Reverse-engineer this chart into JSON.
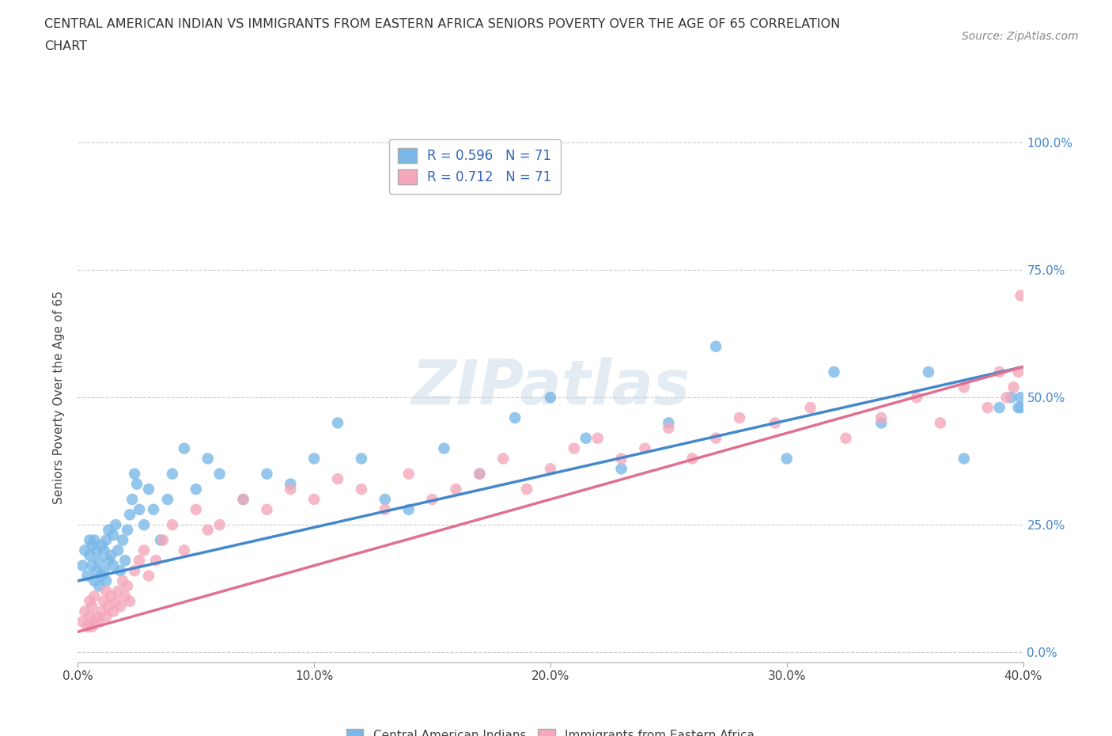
{
  "title_line1": "CENTRAL AMERICAN INDIAN VS IMMIGRANTS FROM EASTERN AFRICA SENIORS POVERTY OVER THE AGE OF 65 CORRELATION",
  "title_line2": "CHART",
  "source_text": "Source: ZipAtlas.com",
  "ylabel_label": "Seniors Poverty Over the Age of 65",
  "xlim": [
    0.0,
    0.4
  ],
  "ylim": [
    -0.02,
    1.02
  ],
  "blue_R": 0.596,
  "blue_N": 71,
  "pink_R": 0.712,
  "pink_N": 71,
  "blue_color": "#7BB8E8",
  "pink_color": "#F4A8BA",
  "blue_line_color": "#4488CC",
  "pink_line_color": "#E07090",
  "legend_label_blue": "Central American Indians",
  "legend_label_pink": "Immigrants from Eastern Africa",
  "watermark": "ZIPatlas",
  "blue_x": [
    0.002,
    0.003,
    0.004,
    0.005,
    0.005,
    0.006,
    0.006,
    0.007,
    0.007,
    0.008,
    0.008,
    0.009,
    0.009,
    0.01,
    0.01,
    0.011,
    0.011,
    0.012,
    0.012,
    0.013,
    0.013,
    0.014,
    0.015,
    0.015,
    0.016,
    0.017,
    0.018,
    0.019,
    0.02,
    0.021,
    0.022,
    0.023,
    0.024,
    0.025,
    0.026,
    0.028,
    0.03,
    0.032,
    0.035,
    0.038,
    0.04,
    0.045,
    0.05,
    0.055,
    0.06,
    0.07,
    0.08,
    0.09,
    0.1,
    0.11,
    0.12,
    0.13,
    0.14,
    0.155,
    0.17,
    0.185,
    0.2,
    0.215,
    0.23,
    0.25,
    0.27,
    0.3,
    0.32,
    0.34,
    0.36,
    0.375,
    0.39,
    0.395,
    0.398,
    0.399,
    0.399
  ],
  "blue_y": [
    0.17,
    0.2,
    0.15,
    0.19,
    0.22,
    0.17,
    0.21,
    0.14,
    0.22,
    0.16,
    0.2,
    0.13,
    0.18,
    0.15,
    0.21,
    0.16,
    0.2,
    0.14,
    0.22,
    0.18,
    0.24,
    0.19,
    0.17,
    0.23,
    0.25,
    0.2,
    0.16,
    0.22,
    0.18,
    0.24,
    0.27,
    0.3,
    0.35,
    0.33,
    0.28,
    0.25,
    0.32,
    0.28,
    0.22,
    0.3,
    0.35,
    0.4,
    0.32,
    0.38,
    0.35,
    0.3,
    0.35,
    0.33,
    0.38,
    0.45,
    0.38,
    0.3,
    0.28,
    0.4,
    0.35,
    0.46,
    0.5,
    0.42,
    0.36,
    0.45,
    0.6,
    0.38,
    0.55,
    0.45,
    0.55,
    0.38,
    0.48,
    0.5,
    0.48,
    0.5,
    0.48
  ],
  "pink_x": [
    0.002,
    0.003,
    0.004,
    0.005,
    0.005,
    0.006,
    0.006,
    0.007,
    0.007,
    0.008,
    0.009,
    0.01,
    0.011,
    0.012,
    0.012,
    0.013,
    0.014,
    0.015,
    0.016,
    0.017,
    0.018,
    0.019,
    0.02,
    0.021,
    0.022,
    0.024,
    0.026,
    0.028,
    0.03,
    0.033,
    0.036,
    0.04,
    0.045,
    0.05,
    0.055,
    0.06,
    0.07,
    0.08,
    0.09,
    0.1,
    0.11,
    0.12,
    0.13,
    0.14,
    0.15,
    0.16,
    0.17,
    0.18,
    0.19,
    0.2,
    0.21,
    0.22,
    0.23,
    0.24,
    0.25,
    0.26,
    0.27,
    0.28,
    0.295,
    0.31,
    0.325,
    0.34,
    0.355,
    0.365,
    0.375,
    0.385,
    0.39,
    0.393,
    0.396,
    0.398,
    0.399
  ],
  "pink_y": [
    0.06,
    0.08,
    0.05,
    0.07,
    0.1,
    0.05,
    0.09,
    0.06,
    0.11,
    0.07,
    0.06,
    0.08,
    0.1,
    0.07,
    0.12,
    0.09,
    0.11,
    0.08,
    0.1,
    0.12,
    0.09,
    0.14,
    0.11,
    0.13,
    0.1,
    0.16,
    0.18,
    0.2,
    0.15,
    0.18,
    0.22,
    0.25,
    0.2,
    0.28,
    0.24,
    0.25,
    0.3,
    0.28,
    0.32,
    0.3,
    0.34,
    0.32,
    0.28,
    0.35,
    0.3,
    0.32,
    0.35,
    0.38,
    0.32,
    0.36,
    0.4,
    0.42,
    0.38,
    0.4,
    0.44,
    0.38,
    0.42,
    0.46,
    0.45,
    0.48,
    0.42,
    0.46,
    0.5,
    0.45,
    0.52,
    0.48,
    0.55,
    0.5,
    0.52,
    0.55,
    0.7
  ],
  "blue_line_x0": 0.0,
  "blue_line_y0": 0.14,
  "blue_line_x1": 0.4,
  "blue_line_y1": 0.56,
  "pink_line_x0": 0.0,
  "pink_line_y0": 0.04,
  "pink_line_x1": 0.4,
  "pink_line_y1": 0.56
}
